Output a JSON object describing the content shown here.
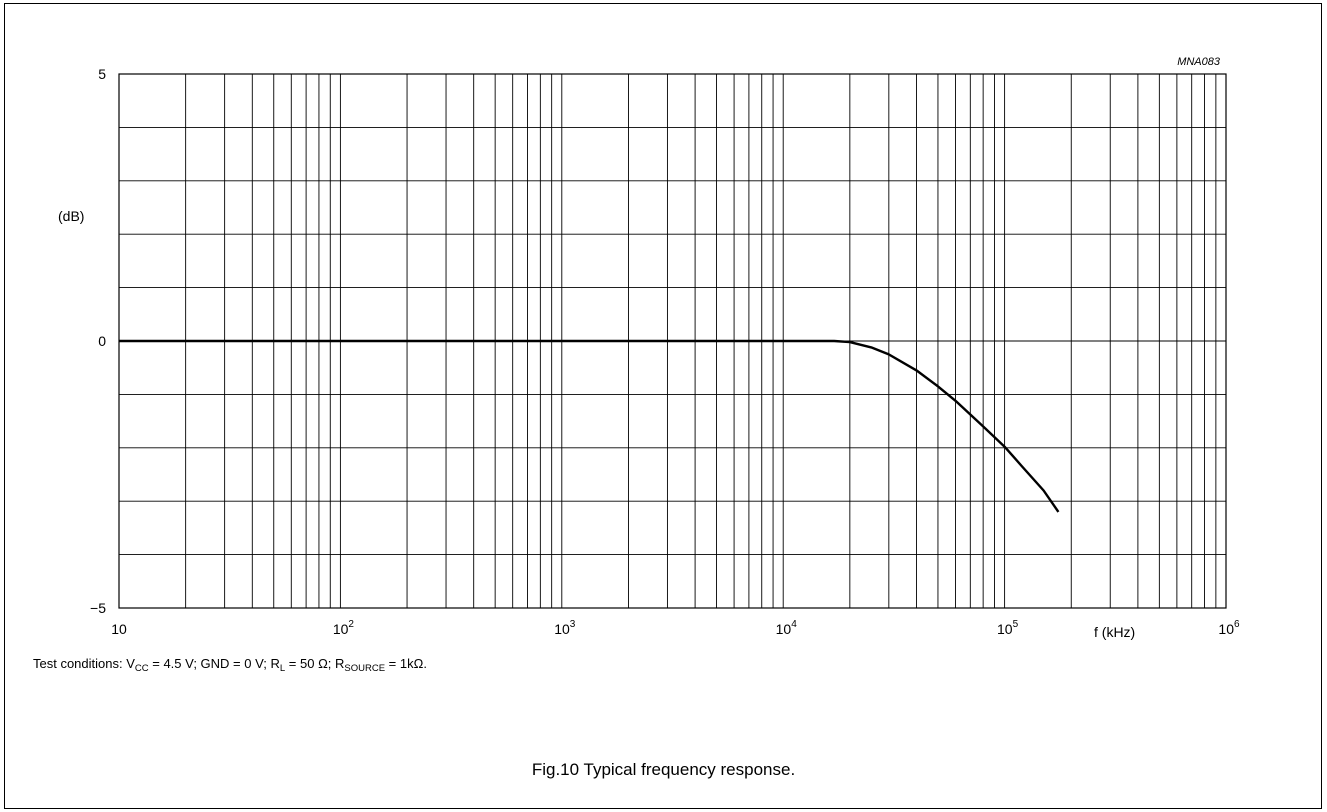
{
  "chart_data": {
    "type": "line",
    "figure_id": "MNA083",
    "ylabel": "(dB)",
    "xlabel": "f (kHz)",
    "xscale": "log",
    "xlim": [
      10,
      1000000
    ],
    "ylim": [
      -5,
      5
    ],
    "grid": true,
    "y_ticks": [
      {
        "value": 5,
        "label": "5"
      },
      {
        "value": 0,
        "label": "0"
      },
      {
        "value": -5,
        "label": "−5"
      }
    ],
    "x_ticks": [
      {
        "value": 10,
        "base": "10",
        "exp": ""
      },
      {
        "value": 100,
        "base": "10",
        "exp": "2"
      },
      {
        "value": 1000,
        "base": "10",
        "exp": "3"
      },
      {
        "value": 10000,
        "base": "10",
        "exp": "4"
      },
      {
        "value": 100000,
        "base": "10",
        "exp": "5"
      },
      {
        "value": 1000000,
        "base": "10",
        "exp": "6"
      }
    ],
    "series": [
      {
        "x": [
          10,
          100,
          1000,
          10000,
          17000,
          20000,
          25000,
          30000,
          40000,
          50000,
          60000,
          80000,
          100000,
          120000,
          150000,
          175000
        ],
        "y": [
          0,
          0,
          0,
          0,
          0,
          -0.02,
          -0.12,
          -0.25,
          -0.55,
          -0.85,
          -1.12,
          -1.6,
          -1.98,
          -2.35,
          -2.8,
          -3.2
        ]
      }
    ]
  },
  "conditions": {
    "prefix": "Test conditions: V",
    "vcc_sub": "CC",
    "vcc_rest": " = 4.5 V; GND = 0 V; R",
    "rl_sub": "L",
    "rl_rest": " = 50 Ω; R",
    "rs_sub": "SOURCE",
    "rs_rest": " = 1kΩ."
  },
  "caption": "Fig.10  Typical frequency response."
}
